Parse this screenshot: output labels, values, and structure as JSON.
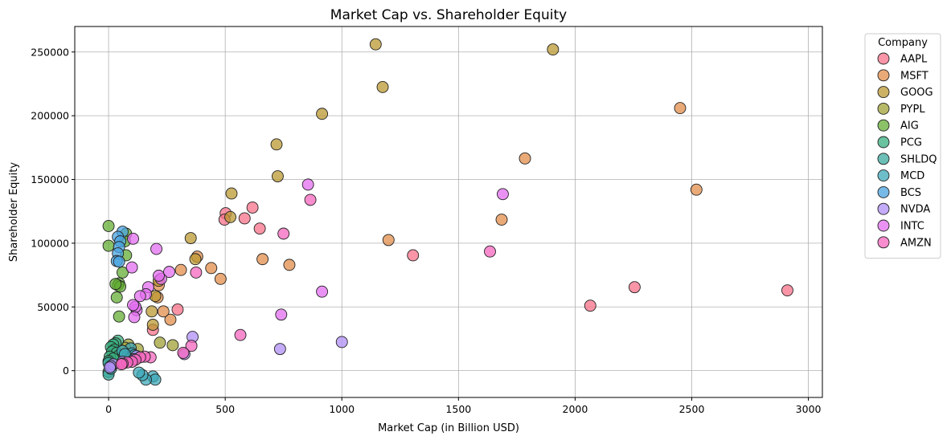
{
  "chart_data": {
    "type": "scatter",
    "title": "Market Cap vs. Shareholder Equity",
    "xlabel": "Market Cap (in Billion USD)",
    "ylabel": "Shareholder Equity",
    "xlim": [
      -145,
      3060
    ],
    "ylim": [
      -21000,
      270000
    ],
    "xticks": [
      0,
      500,
      1000,
      1500,
      2000,
      2500,
      3000
    ],
    "yticks": [
      0,
      50000,
      100000,
      150000,
      200000,
      250000
    ],
    "grid": true,
    "legend": {
      "title": "Company",
      "placement": "outside-top-right"
    },
    "series": [
      {
        "name": "AAPL",
        "color": "#f77189",
        "points": [
          [
            2910,
            63000
          ],
          [
            2255,
            65500
          ],
          [
            2065,
            51000
          ],
          [
            1305,
            90500
          ],
          [
            648,
            111500
          ],
          [
            617,
            128000
          ],
          [
            583,
            119500
          ],
          [
            502,
            123500
          ],
          [
            497,
            118500
          ],
          [
            296,
            48000
          ],
          [
            190,
            32000
          ]
        ]
      },
      {
        "name": "MSFT",
        "color": "#e18e4b",
        "points": [
          [
            2520,
            142000
          ],
          [
            2450,
            206000
          ],
          [
            1785,
            166500
          ],
          [
            1685,
            118500
          ],
          [
            1200,
            102500
          ],
          [
            775,
            83000
          ],
          [
            660,
            87500
          ],
          [
            440,
            80500
          ],
          [
            480,
            72000
          ],
          [
            380,
            89500
          ],
          [
            310,
            79000
          ],
          [
            265,
            40000
          ],
          [
            235,
            46500
          ],
          [
            215,
            67000
          ],
          [
            210,
            57500
          ]
        ]
      },
      {
        "name": "GOOG",
        "color": "#bb9832",
        "points": [
          [
            1905,
            252000
          ],
          [
            1145,
            256000
          ],
          [
            1175,
            222500
          ],
          [
            915,
            201500
          ],
          [
            720,
            177500
          ],
          [
            725,
            152500
          ],
          [
            527,
            139000
          ],
          [
            522,
            120500
          ],
          [
            352,
            104000
          ],
          [
            372,
            87500
          ],
          [
            190,
            36000
          ],
          [
            185,
            46500
          ],
          [
            200,
            58500
          ],
          [
            215,
            70500
          ]
        ]
      },
      {
        "name": "PYPL",
        "color": "#a0a235",
        "points": [
          [
            275,
            20000
          ],
          [
            220,
            22000
          ],
          [
            125,
            17000
          ],
          [
            85,
            20500
          ],
          [
            70,
            18000
          ],
          [
            55,
            15500
          ]
        ]
      },
      {
        "name": "AIG",
        "color": "#64ad36",
        "points": [
          [
            0,
            113500
          ],
          [
            0,
            98000
          ],
          [
            75,
            107500
          ],
          [
            70,
            101500
          ],
          [
            75,
            90500
          ],
          [
            60,
            77000
          ],
          [
            45,
            68500
          ],
          [
            40,
            67000
          ],
          [
            50,
            66000
          ],
          [
            35,
            57500
          ],
          [
            45,
            42500
          ],
          [
            30,
            68000
          ]
        ]
      },
      {
        "name": "PCG",
        "color": "#38ad7d",
        "points": [
          [
            40,
            23500
          ],
          [
            30,
            21500
          ],
          [
            20,
            20500
          ],
          [
            10,
            18500
          ],
          [
            25,
            16500
          ],
          [
            15,
            15000
          ],
          [
            35,
            14000
          ],
          [
            45,
            12000
          ],
          [
            5,
            11000
          ],
          [
            20,
            9500
          ],
          [
            0,
            7500
          ]
        ]
      },
      {
        "name": "SHLDQ",
        "color": "#3baa9e",
        "points": [
          [
            0,
            -1000
          ],
          [
            0,
            -3000
          ],
          [
            5,
            3500
          ],
          [
            0,
            6000
          ],
          [
            10,
            1500
          ]
        ]
      },
      {
        "name": "MCD",
        "color": "#3ea8b8",
        "points": [
          [
            190,
            -4500
          ],
          [
            200,
            -7000
          ],
          [
            160,
            -7000
          ],
          [
            145,
            -3500
          ],
          [
            130,
            -1500
          ],
          [
            95,
            17500
          ],
          [
            100,
            13500
          ],
          [
            80,
            10500
          ],
          [
            110,
            12000
          ],
          [
            60,
            15500
          ],
          [
            70,
            13000
          ]
        ]
      },
      {
        "name": "BCS",
        "color": "#4aa3df",
        "points": [
          [
            60,
            109000
          ],
          [
            40,
            105000
          ],
          [
            50,
            101500
          ],
          [
            45,
            97000
          ],
          [
            40,
            92000
          ],
          [
            35,
            86000
          ],
          [
            45,
            85500
          ]
        ]
      },
      {
        "name": "NVDA",
        "color": "#b08ff5",
        "points": [
          [
            1000,
            22500
          ],
          [
            735,
            17000
          ],
          [
            360,
            26500
          ],
          [
            325,
            13000
          ],
          [
            120,
            11500
          ],
          [
            110,
            9000
          ],
          [
            60,
            7000
          ],
          [
            20,
            5000
          ],
          [
            10,
            3500
          ],
          [
            5,
            2500
          ]
        ]
      },
      {
        "name": "INTC",
        "color": "#e36ef0",
        "points": [
          [
            1690,
            138500
          ],
          [
            855,
            146000
          ],
          [
            915,
            62000
          ],
          [
            740,
            44000
          ],
          [
            260,
            77500
          ],
          [
            225,
            72000
          ],
          [
            215,
            74500
          ],
          [
            205,
            95500
          ],
          [
            170,
            65500
          ],
          [
            160,
            60000
          ],
          [
            135,
            58500
          ],
          [
            120,
            47500
          ],
          [
            115,
            50000
          ],
          [
            105,
            103500
          ],
          [
            100,
            81000
          ],
          [
            105,
            51500
          ],
          [
            110,
            42000
          ]
        ]
      },
      {
        "name": "AMZN",
        "color": "#f466bd",
        "points": [
          [
            1635,
            93500
          ],
          [
            865,
            134000
          ],
          [
            750,
            107500
          ],
          [
            565,
            28000
          ],
          [
            375,
            77000
          ],
          [
            355,
            19500
          ],
          [
            320,
            14000
          ],
          [
            180,
            10500
          ],
          [
            155,
            11000
          ],
          [
            135,
            10500
          ],
          [
            115,
            8500
          ],
          [
            100,
            7000
          ],
          [
            80,
            6500
          ],
          [
            60,
            5500
          ],
          [
            55,
            5000
          ]
        ]
      }
    ]
  }
}
